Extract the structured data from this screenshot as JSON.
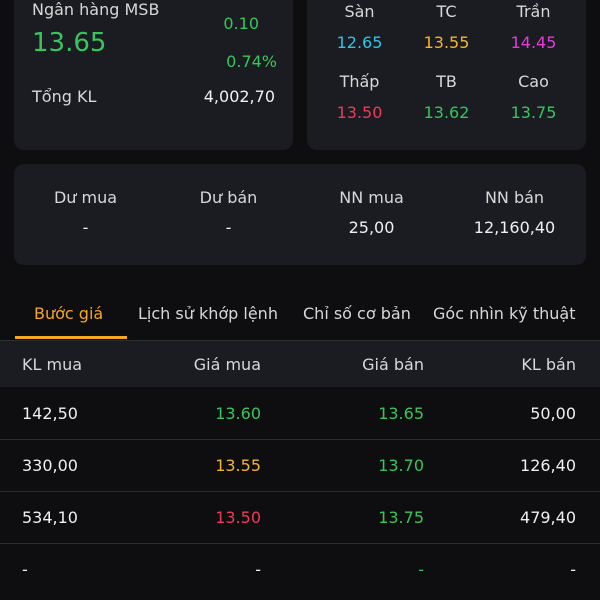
{
  "stock": {
    "name": "Ngân hàng MSB",
    "price": "13.65",
    "change": "0.10",
    "change_pct": "0.74%",
    "volume_label": "Tổng KL",
    "volume_value": "4,002,70"
  },
  "prices": [
    {
      "label": "Sàn",
      "value": "12.65",
      "color": "#2fc4e8"
    },
    {
      "label": "TC",
      "value": "13.55",
      "color": "#f5b52a"
    },
    {
      "label": "Trần",
      "value": "14.45",
      "color": "#e63ad8"
    },
    {
      "label": "Thấp",
      "value": "13.50",
      "color": "#ee3a5a"
    },
    {
      "label": "TB",
      "value": "13.62",
      "color": "#36c65b"
    },
    {
      "label": "Cao",
      "value": "13.75",
      "color": "#36c65b"
    }
  ],
  "market": [
    {
      "label": "Dư mua",
      "value": "-"
    },
    {
      "label": "Dư bán",
      "value": "-"
    },
    {
      "label": "NN mua",
      "value": "25,00"
    },
    {
      "label": "NN bán",
      "value": "12,160,40"
    }
  ],
  "tabs": [
    {
      "label": "Bước giá",
      "active": true
    },
    {
      "label": "Lịch sử khớp lệnh",
      "active": false
    },
    {
      "label": "Chỉ số cơ bản",
      "active": false
    },
    {
      "label": "Góc nhìn kỹ thuật",
      "active": false
    }
  ],
  "columns": {
    "kl_mua": "KL mua",
    "gia_mua": "Giá mua",
    "gia_ban": "Giá bán",
    "kl_ban": "KL bán"
  },
  "rows": [
    {
      "kl_mua": "142,50",
      "gia_mua": "13.60",
      "gia_mua_color": "#36c65b",
      "gia_ban": "13.65",
      "kl_ban": "50,00"
    },
    {
      "kl_mua": "330,00",
      "gia_mua": "13.55",
      "gia_mua_color": "#f5b52a",
      "gia_ban": "13.70",
      "kl_ban": "126,40"
    },
    {
      "kl_mua": "534,10",
      "gia_mua": "13.50",
      "gia_mua_color": "#ee3a5a",
      "gia_ban": "13.75",
      "kl_ban": "479,40"
    },
    {
      "kl_mua": "-",
      "gia_mua": "-",
      "gia_mua_color": "#f0f0f0",
      "gia_ban": "-",
      "kl_ban": "-"
    }
  ]
}
